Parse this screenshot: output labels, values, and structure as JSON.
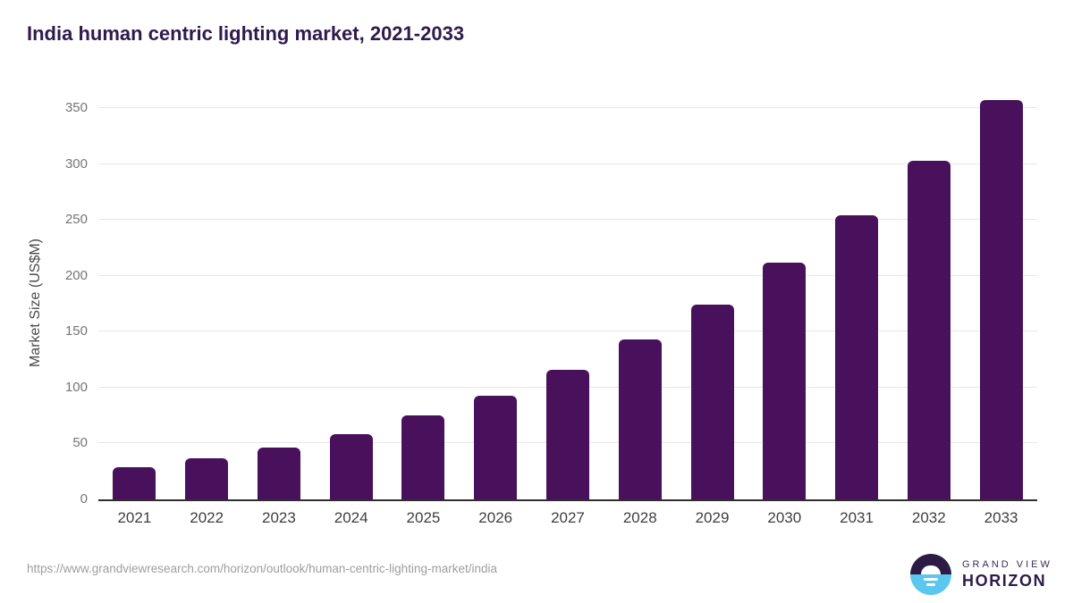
{
  "page": {
    "title": "India human centric lighting market, 2021-2033",
    "source_url": "https://www.grandviewresearch.com/horizon/outlook/human-centric-lighting-market/india"
  },
  "logo": {
    "top_text": "GRAND VIEW",
    "bottom_text": "HORIZON"
  },
  "colors": {
    "bar": "#49105C",
    "title": "#2E1A4D",
    "gridline": "#E8E8E8",
    "axis_line": "#2F2F2F",
    "y_tick_text": "#757575",
    "x_tick_text": "#3F3F3F",
    "source_text": "#9E9E9E",
    "logo_purple": "#2B1B45",
    "logo_blue": "#5BC6F0"
  },
  "chart_data": {
    "type": "bar",
    "title": "India human centric lighting market, 2021-2033",
    "categories": [
      "2021",
      "2022",
      "2023",
      "2024",
      "2025",
      "2026",
      "2027",
      "2028",
      "2029",
      "2030",
      "2031",
      "2032",
      "2033"
    ],
    "values": [
      29,
      37,
      46,
      58,
      75,
      93,
      116,
      143,
      174,
      212,
      254,
      303,
      357
    ],
    "xlabel": "",
    "ylabel": "Market Size (US$M)",
    "ylim": [
      0,
      350
    ],
    "yticks": [
      0,
      50,
      100,
      150,
      200,
      250,
      300,
      350
    ],
    "grid": true,
    "legend_position": "none",
    "bar_color": "#49105C"
  }
}
